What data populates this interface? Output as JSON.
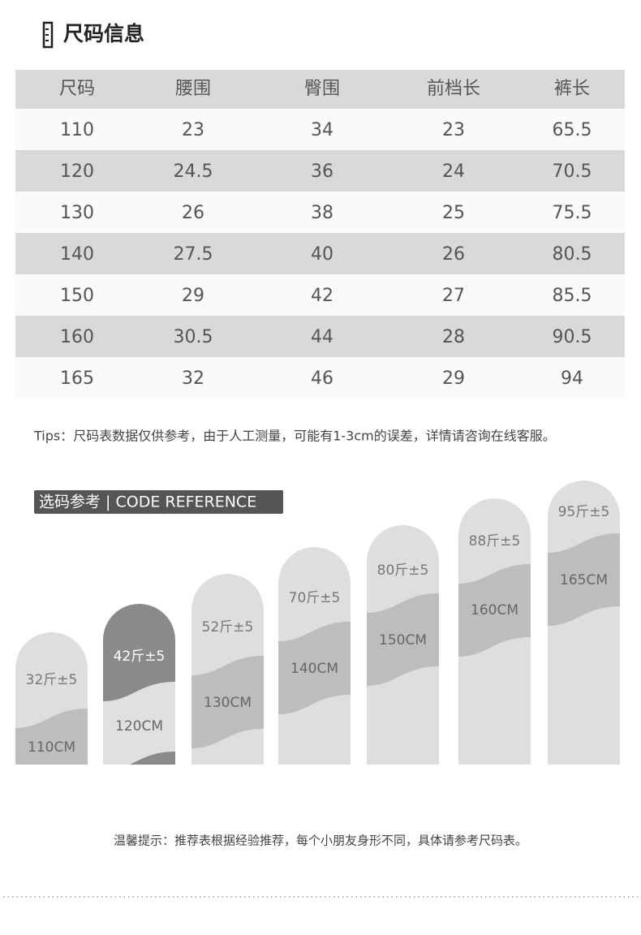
{
  "header": {
    "title": "尺码信息"
  },
  "table": {
    "columns": [
      "尺码",
      "腰围",
      "臀围",
      "前档长",
      "裤长"
    ],
    "rows": [
      [
        "110",
        "23",
        "34",
        "23",
        "65.5"
      ],
      [
        "120",
        "24.5",
        "36",
        "24",
        "70.5"
      ],
      [
        "130",
        "26",
        "38",
        "25",
        "75.5"
      ],
      [
        "140",
        "27.5",
        "40",
        "26",
        "80.5"
      ],
      [
        "150",
        "29",
        "42",
        "27",
        "85.5"
      ],
      [
        "160",
        "30.5",
        "44",
        "28",
        "90.5"
      ],
      [
        "165",
        "32",
        "46",
        "29",
        "94"
      ]
    ]
  },
  "tips": "Tips：尺码表数据仅供参考，由于人工测量，可能有1-3cm的误差，详情请咨询在线客服。",
  "reference": {
    "title": "选码参考 | CODE REFERENCE",
    "items": [
      {
        "weight": "32斤±5",
        "height": "110CM"
      },
      {
        "weight": "42斤±5",
        "height": "120CM"
      },
      {
        "weight": "52斤±5",
        "height": "130CM"
      },
      {
        "weight": "70斤±5",
        "height": "140CM"
      },
      {
        "weight": "80斤±5",
        "height": "150CM"
      },
      {
        "weight": "88斤±5",
        "height": "160CM"
      },
      {
        "weight": "95斤±5",
        "height": "165CM"
      }
    ]
  },
  "note": "温馨提示：推荐表根据经验推荐，每个小朋友身形不同，具体请参考尺码表。"
}
